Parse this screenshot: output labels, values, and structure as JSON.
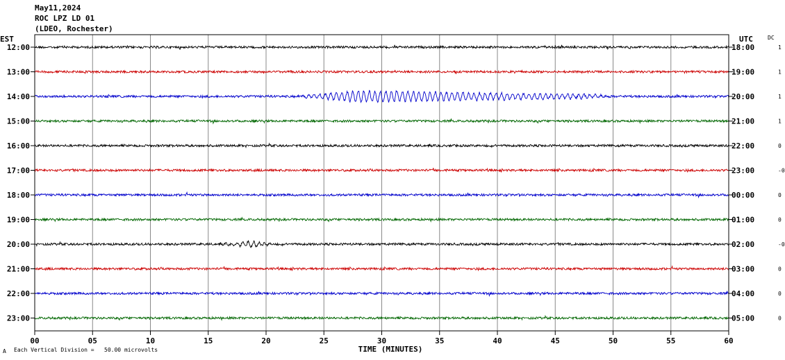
{
  "header": {
    "date": "May11,2024",
    "station": "ROC LPZ LD 01",
    "network": "(LDEO, Rochester)"
  },
  "chart_data": {
    "type": "line",
    "title": "",
    "xlabel": "TIME (MINUTES)",
    "left_axis_label": "EST",
    "right_axis_label": "UTC",
    "dc_label": "DC",
    "xlim": [
      0,
      60
    ],
    "x_ticks": [
      "00",
      "05",
      "10",
      "15",
      "20",
      "25",
      "30",
      "35",
      "40",
      "45",
      "50",
      "55",
      "60"
    ],
    "grid": "vertical every 5 minutes",
    "scale_note": "Each Vertical Division =   50.00 microvolts",
    "scale_mark": "A",
    "traces": [
      {
        "est": "12:00",
        "utc": "18:00",
        "dc": "1",
        "color": "#000000",
        "events": []
      },
      {
        "est": "13:00",
        "utc": "19:00",
        "dc": "1",
        "color": "#cc0000",
        "events": []
      },
      {
        "est": "14:00",
        "utc": "20:00",
        "dc": "1",
        "color": "#0000cc",
        "events": [
          {
            "start": 22.5,
            "peak": 28,
            "end": 50,
            "amplitude": 8
          }
        ]
      },
      {
        "est": "15:00",
        "utc": "21:00",
        "dc": "1",
        "color": "#006600",
        "events": []
      },
      {
        "est": "16:00",
        "utc": "22:00",
        "dc": "0",
        "color": "#000000",
        "events": []
      },
      {
        "est": "17:00",
        "utc": "23:00",
        "dc": "-0",
        "color": "#cc0000",
        "events": []
      },
      {
        "est": "18:00",
        "utc": "00:00",
        "dc": "0",
        "color": "#0000cc",
        "events": []
      },
      {
        "est": "19:00",
        "utc": "01:00",
        "dc": "0",
        "color": "#006600",
        "events": []
      },
      {
        "est": "20:00",
        "utc": "02:00",
        "dc": "-0",
        "color": "#000000",
        "events": [
          {
            "start": 16,
            "peak": 18.5,
            "end": 21,
            "amplitude": 4
          }
        ]
      },
      {
        "est": "21:00",
        "utc": "03:00",
        "dc": "0",
        "color": "#cc0000",
        "events": []
      },
      {
        "est": "22:00",
        "utc": "04:00",
        "dc": "0",
        "color": "#0000cc",
        "events": []
      },
      {
        "est": "23:00",
        "utc": "05:00",
        "dc": "0",
        "color": "#006600",
        "events": []
      }
    ]
  }
}
